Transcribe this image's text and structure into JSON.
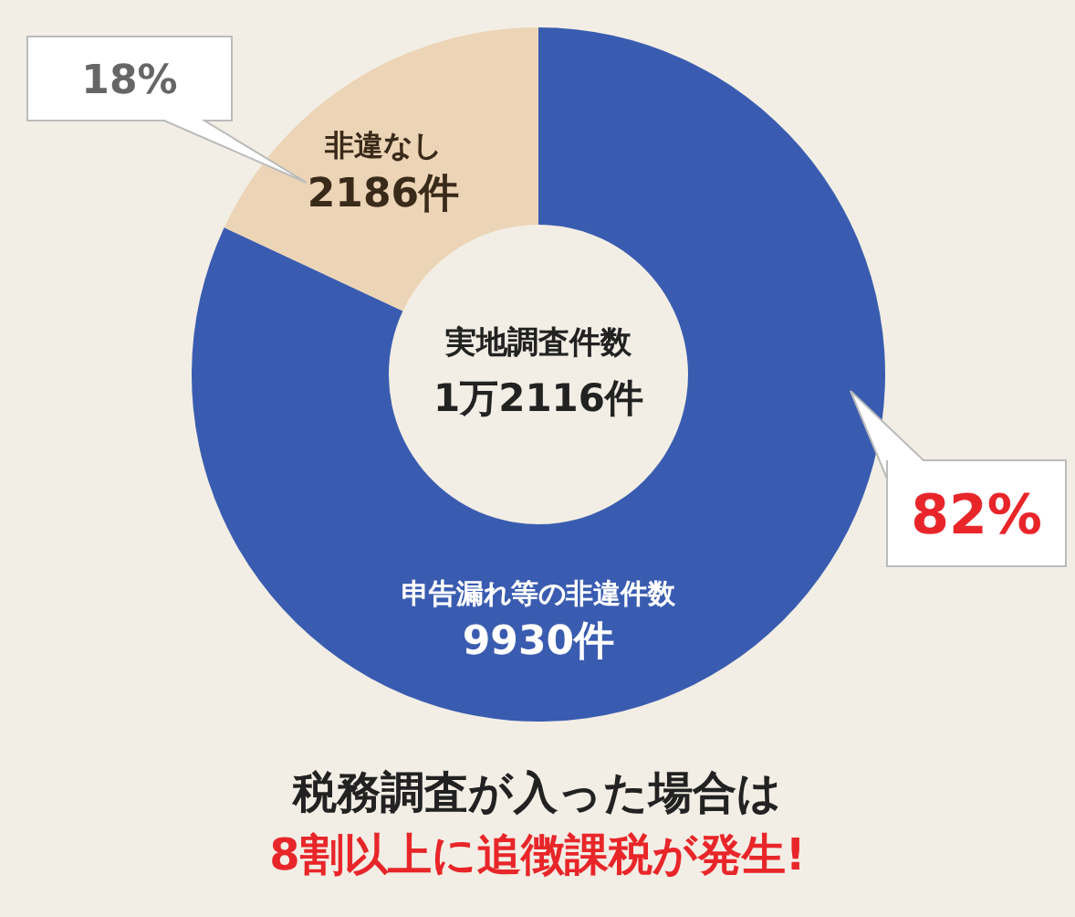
{
  "chart_data": {
    "type": "donut",
    "categories": [
      "申告漏れ等の非違件数",
      "非違なし"
    ],
    "values": [
      9930,
      2186
    ],
    "value_labels": [
      "9930件",
      "2186件"
    ],
    "colors": [
      "#3a5cb0",
      "#ecd4b6"
    ],
    "annotations": [
      "実地調査件数",
      "1万2116件",
      "82%",
      "18%",
      "税務調査が入った場合は",
      "8割以上に追徴課税が発生!"
    ]
  }
}
